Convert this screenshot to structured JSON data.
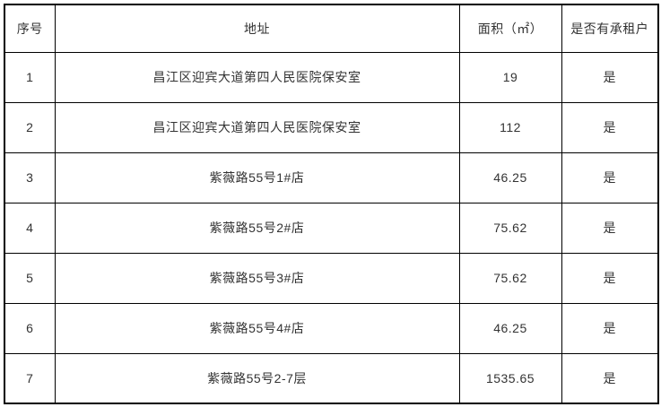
{
  "table": {
    "columns": [
      {
        "key": "no",
        "label": "序号"
      },
      {
        "key": "address",
        "label": "地址"
      },
      {
        "key": "area",
        "label": "面积（㎡）"
      },
      {
        "key": "tenant",
        "label": "是否有承租户"
      }
    ],
    "rows": [
      {
        "no": "1",
        "address": "昌江区迎宾大道第四人民医院保安室",
        "area": "19",
        "tenant": "是"
      },
      {
        "no": "2",
        "address": "昌江区迎宾大道第四人民医院保安室",
        "area": "112",
        "tenant": "是"
      },
      {
        "no": "3",
        "address": "紫薇路55号1#店",
        "area": "46.25",
        "tenant": "是"
      },
      {
        "no": "4",
        "address": "紫薇路55号2#店",
        "area": "75.62",
        "tenant": "是"
      },
      {
        "no": "5",
        "address": "紫薇路55号3#店",
        "area": "75.62",
        "tenant": "是"
      },
      {
        "no": "6",
        "address": "紫薇路55号4#店",
        "area": "46.25",
        "tenant": "是"
      },
      {
        "no": "7",
        "address": "紫薇路55号2-7层",
        "area": "1535.65",
        "tenant": "是"
      }
    ],
    "colors": {
      "border": "#000000",
      "text": "#333333",
      "background": "#ffffff"
    }
  }
}
